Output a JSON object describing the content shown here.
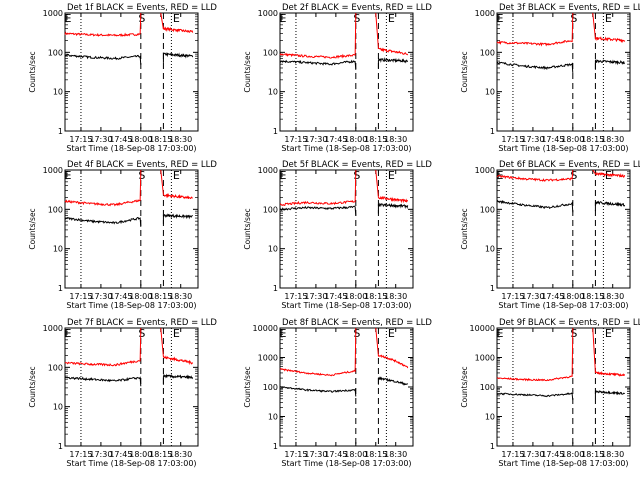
{
  "chart_data": [
    {
      "title": "Det 1f BLACK = Events, RED = LLD",
      "type": "line",
      "xlabel": "Start Time (18-Sep-08 17:03:00)",
      "ylabel": "Counts/sec",
      "ylog": true,
      "ylim": [
        1,
        1000
      ],
      "yticks": [
        "1",
        "10",
        "100",
        "1000"
      ],
      "xticks": [
        "17:15",
        "17:30",
        "17:45",
        "18:00",
        "18:15",
        "18:30"
      ],
      "markers": [
        "S",
        "E"
      ],
      "series": [
        {
          "color": "#ff0000",
          "pre": [
            300,
            280,
            270,
            290
          ],
          "post": [
            400,
            330
          ]
        },
        {
          "color": "#000000",
          "pre": [
            85,
            75,
            70,
            80
          ],
          "post": [
            90,
            80
          ]
        }
      ]
    },
    {
      "title": "Det 2f BLACK = Events, RED = LLD",
      "type": "line",
      "xlabel": "Start Time (18-Sep-08 17:03:00)",
      "ylabel": "Counts/sec",
      "ylog": true,
      "ylim": [
        1,
        1000
      ],
      "yticks": [
        "1",
        "10",
        "100",
        "1000"
      ],
      "xticks": [
        "17:15",
        "17:30",
        "17:45",
        "18:00",
        "18:15",
        "18:30"
      ],
      "markers": [
        "S",
        "E"
      ],
      "series": [
        {
          "color": "#ff0000",
          "pre": [
            90,
            80,
            75,
            85
          ],
          "post": [
            120,
            90
          ]
        },
        {
          "color": "#000000",
          "pre": [
            60,
            55,
            50,
            60
          ],
          "post": [
            65,
            60
          ]
        }
      ]
    },
    {
      "title": "Det 3f BLACK = Events, RED = LLD",
      "type": "line",
      "xlabel": "Start Time (18-Sep-08 17:03:00)",
      "ylabel": "Counts/sec",
      "ylog": true,
      "ylim": [
        1,
        1000
      ],
      "yticks": [
        "1",
        "10",
        "100",
        "1000"
      ],
      "xticks": [
        "17:15",
        "17:30",
        "17:45",
        "18:00",
        "18:15",
        "18:30"
      ],
      "markers": [
        "S",
        "E"
      ],
      "series": [
        {
          "color": "#ff0000",
          "pre": [
            180,
            170,
            160,
            200
          ],
          "post": [
            230,
            200
          ]
        },
        {
          "color": "#000000",
          "pre": [
            55,
            45,
            40,
            50
          ],
          "post": [
            60,
            55
          ]
        }
      ]
    },
    {
      "title": "Det 4f BLACK = Events, RED = LLD",
      "type": "line",
      "xlabel": "Start Time (18-Sep-08 17:03:00)",
      "ylabel": "Counts/sec",
      "ylog": true,
      "ylim": [
        1,
        1000
      ],
      "yticks": [
        "1",
        "10",
        "100",
        "1000"
      ],
      "xticks": [
        "17:15",
        "17:30",
        "17:45",
        "18:00",
        "18:15",
        "18:30"
      ],
      "markers": [
        "S",
        "E"
      ],
      "series": [
        {
          "color": "#ff0000",
          "pre": [
            160,
            140,
            130,
            170
          ],
          "post": [
            230,
            190
          ]
        },
        {
          "color": "#000000",
          "pre": [
            60,
            50,
            45,
            60
          ],
          "post": [
            70,
            65
          ]
        }
      ]
    },
    {
      "title": "Det 5f BLACK = Events, RED = LLD",
      "type": "line",
      "xlabel": "Start Time (18-Sep-08 17:03:00)",
      "ylabel": "Counts/sec",
      "ylog": true,
      "ylim": [
        1,
        1000
      ],
      "yticks": [
        "1",
        "10",
        "100",
        "1000"
      ],
      "xticks": [
        "17:15",
        "17:30",
        "17:45",
        "18:00",
        "18:15",
        "18:30"
      ],
      "markers": [
        "S",
        "E"
      ],
      "series": [
        {
          "color": "#ff0000",
          "pre": [
            130,
            150,
            140,
            160
          ],
          "post": [
            200,
            160
          ]
        },
        {
          "color": "#000000",
          "pre": [
            100,
            110,
            105,
            115
          ],
          "post": [
            130,
            120
          ]
        }
      ]
    },
    {
      "title": "Det 6f BLACK = Events, RED = LLD",
      "type": "line",
      "xlabel": "Start Time (18-Sep-08 17:03:00)",
      "ylabel": "Counts/sec",
      "ylog": true,
      "ylim": [
        1,
        1000
      ],
      "yticks": [
        "1",
        "10",
        "100",
        "1000"
      ],
      "xticks": [
        "17:15",
        "17:30",
        "17:45",
        "18:00",
        "18:15",
        "18:30"
      ],
      "markers": [
        "S",
        "E"
      ],
      "series": [
        {
          "color": "#ff0000",
          "pre": [
            700,
            600,
            550,
            600
          ],
          "post": [
            800,
            700
          ]
        },
        {
          "color": "#000000",
          "pre": [
            160,
            130,
            110,
            140
          ],
          "post": [
            150,
            130
          ]
        }
      ]
    },
    {
      "title": "Det 7f BLACK = Events, RED = LLD",
      "type": "line",
      "xlabel": "Start Time (18-Sep-08 17:03:00)",
      "ylabel": "Counts/sec",
      "ylog": true,
      "ylim": [
        1,
        1000
      ],
      "yticks": [
        "1",
        "10",
        "100",
        "1000"
      ],
      "xticks": [
        "17:15",
        "17:30",
        "17:45",
        "18:00",
        "18:15",
        "18:30"
      ],
      "markers": [
        "S",
        "E"
      ],
      "series": [
        {
          "color": "#ff0000",
          "pre": [
            130,
            120,
            115,
            150
          ],
          "post": [
            180,
            130
          ]
        },
        {
          "color": "#000000",
          "pre": [
            55,
            50,
            45,
            55
          ],
          "post": [
            60,
            55
          ]
        }
      ]
    },
    {
      "title": "Det 8f BLACK = Events, RED = LLD",
      "type": "line",
      "xlabel": "Start Time (18-Sep-08 17:03:00)",
      "ylabel": "Counts/sec",
      "ylog": true,
      "ylim": [
        1,
        10000
      ],
      "yticks": [
        "1",
        "10",
        "100",
        "1000",
        "10000"
      ],
      "xticks": [
        "17:15",
        "17:30",
        "17:45",
        "18:00",
        "18:15",
        "18:30"
      ],
      "markers": [
        "S",
        "E"
      ],
      "series": [
        {
          "color": "#ff0000",
          "pre": [
            400,
            300,
            250,
            350
          ],
          "post": [
            1200,
            450
          ]
        },
        {
          "color": "#000000",
          "pre": [
            100,
            80,
            70,
            80
          ],
          "post": [
            200,
            120
          ]
        }
      ]
    },
    {
      "title": "Det 9f BLACK = Events, RED = LLD",
      "type": "line",
      "xlabel": "Start Time (18-Sep-08 17:03:00)",
      "ylabel": "Counts/sec",
      "ylog": true,
      "ylim": [
        1,
        10000
      ],
      "yticks": [
        "1",
        "10",
        "100",
        "1000",
        "10000"
      ],
      "xticks": [
        "17:15",
        "17:30",
        "17:45",
        "18:00",
        "18:15",
        "18:30"
      ],
      "markers": [
        "S",
        "E"
      ],
      "series": [
        {
          "color": "#ff0000",
          "pre": [
            200,
            180,
            170,
            230
          ],
          "post": [
            300,
            250
          ]
        },
        {
          "color": "#000000",
          "pre": [
            60,
            55,
            50,
            60
          ],
          "post": [
            70,
            60
          ]
        }
      ]
    }
  ]
}
